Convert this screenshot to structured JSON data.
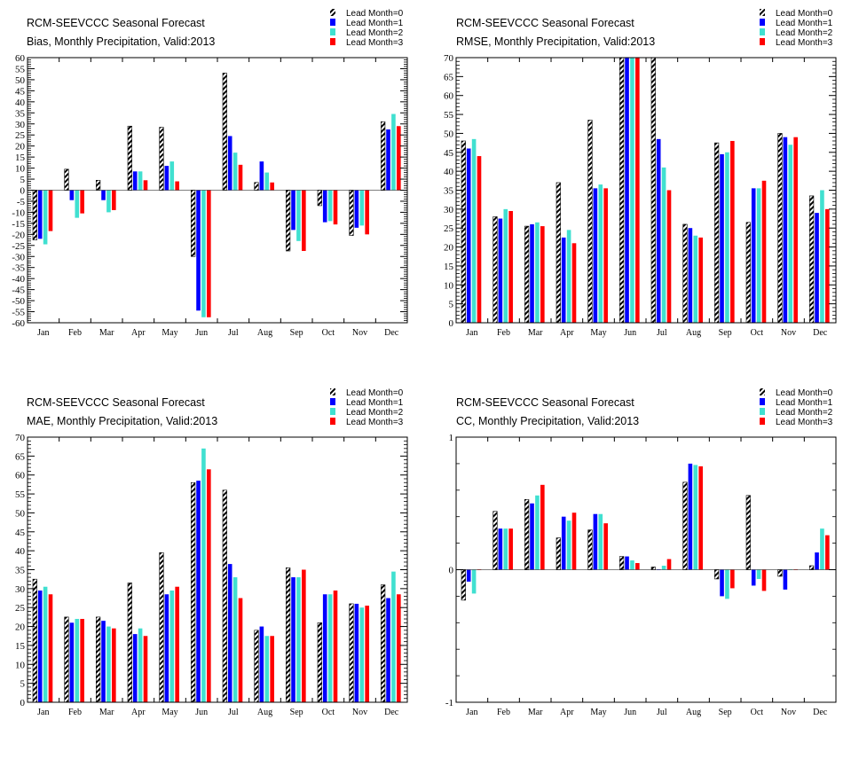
{
  "chart_data": [
    {
      "type": "bar",
      "title": "RCM-SEEVCCC Seasonal Forecast",
      "subtitle": "Bias, Monthly Precipitation, Valid:2013",
      "categories": [
        "Jan",
        "Feb",
        "Mar",
        "Apr",
        "May",
        "Jun",
        "Jul",
        "Aug",
        "Sep",
        "Oct",
        "Nov",
        "Dec"
      ],
      "ylim": [
        -60,
        60
      ],
      "yticks": [
        60,
        55,
        50,
        45,
        40,
        35,
        30,
        25,
        20,
        15,
        10,
        5,
        0,
        -5,
        -10,
        -15,
        -20,
        -25,
        -30,
        -35,
        -40,
        -45,
        -50,
        -55,
        -60
      ],
      "legend": "top-right",
      "series": [
        {
          "name": "Lead Month=0",
          "values": [
            -22.5,
            9.5,
            4.5,
            29,
            28.5,
            -30,
            53,
            3.5,
            -27.5,
            -7,
            -20.5,
            31
          ]
        },
        {
          "name": "Lead Month=1",
          "values": [
            -22,
            -4.5,
            -4.5,
            8.5,
            11,
            -54.5,
            24.5,
            13,
            -18,
            -14.5,
            -17,
            27.5
          ]
        },
        {
          "name": "Lead Month=2",
          "values": [
            -24.5,
            -12.5,
            -10,
            8.5,
            13,
            -57.5,
            17,
            8,
            -23,
            -14,
            -16,
            34.5
          ]
        },
        {
          "name": "Lead Month=3",
          "values": [
            -18.5,
            -10.5,
            -9,
            4.5,
            4,
            -57.5,
            11.5,
            3.5,
            -27.5,
            -15.5,
            -20,
            29
          ]
        }
      ]
    },
    {
      "type": "bar",
      "title": "RCM-SEEVCCC Seasonal Forecast",
      "subtitle": "RMSE, Monthly Precipitation, Valid:2013",
      "categories": [
        "Jan",
        "Feb",
        "Mar",
        "Apr",
        "May",
        "Jun",
        "Jul",
        "Aug",
        "Sep",
        "Oct",
        "Nov",
        "Dec"
      ],
      "ylim": [
        0,
        70
      ],
      "yticks": [
        70,
        65,
        60,
        55,
        50,
        45,
        40,
        35,
        30,
        25,
        20,
        15,
        10,
        5,
        0
      ],
      "legend": "top-right",
      "series": [
        {
          "name": "Lead Month=0",
          "values": [
            48,
            28,
            25.5,
            37,
            53.5,
            70,
            70,
            26,
            47.5,
            26.5,
            50,
            33.5
          ]
        },
        {
          "name": "Lead Month=1",
          "values": [
            46,
            27.5,
            26,
            22.5,
            35.5,
            70,
            48.5,
            25,
            44.5,
            35.5,
            49,
            29
          ]
        },
        {
          "name": "Lead Month=2",
          "values": [
            48.5,
            30,
            26.5,
            24.5,
            36.5,
            70,
            41,
            23,
            45,
            35.5,
            47,
            35
          ]
        },
        {
          "name": "Lead Month=3",
          "values": [
            44,
            29.5,
            25.5,
            21,
            35.5,
            70,
            35,
            22.5,
            48,
            37.5,
            49,
            30
          ]
        }
      ]
    },
    {
      "type": "bar",
      "title": "RCM-SEEVCCC Seasonal Forecast",
      "subtitle": "MAE, Monthly Precipitation, Valid:2013",
      "categories": [
        "Jan",
        "Feb",
        "Mar",
        "Apr",
        "May",
        "Jun",
        "Jul",
        "Aug",
        "Sep",
        "Oct",
        "Nov",
        "Dec"
      ],
      "ylim": [
        0,
        70
      ],
      "yticks": [
        70,
        65,
        60,
        55,
        50,
        45,
        40,
        35,
        30,
        25,
        20,
        15,
        10,
        5,
        0
      ],
      "legend": "top-right",
      "series": [
        {
          "name": "Lead Month=0",
          "values": [
            32.5,
            22.5,
            22.5,
            31.5,
            39.5,
            58,
            56,
            19,
            35.5,
            21,
            26,
            31
          ]
        },
        {
          "name": "Lead Month=1",
          "values": [
            29.5,
            21,
            21.5,
            18,
            28.5,
            58.5,
            36.5,
            20,
            33,
            28.5,
            26,
            27.5
          ]
        },
        {
          "name": "Lead Month=2",
          "values": [
            30.5,
            22,
            20,
            19.5,
            29.5,
            67,
            33,
            17.5,
            33,
            28.5,
            25,
            34.5
          ]
        },
        {
          "name": "Lead Month=3",
          "values": [
            28.5,
            22,
            19.5,
            17.5,
            30.5,
            61.5,
            27.5,
            17.5,
            35,
            29.5,
            25.5,
            28.5
          ]
        }
      ]
    },
    {
      "type": "bar",
      "title": "RCM-SEEVCCC Seasonal Forecast",
      "subtitle": "CC, Monthly Precipitation, Valid:2013",
      "categories": [
        "Jan",
        "Feb",
        "Mar",
        "Apr",
        "May",
        "Jun",
        "Jul",
        "Aug",
        "Sep",
        "Oct",
        "Nov",
        "Dec"
      ],
      "ylim": [
        -1,
        1
      ],
      "yticks": [
        1,
        0,
        -1
      ],
      "legend": "top-right",
      "series": [
        {
          "name": "Lead Month=0",
          "values": [
            -0.23,
            0.44,
            0.53,
            0.24,
            0.3,
            0.1,
            0.02,
            0.66,
            -0.07,
            0.56,
            -0.05,
            0.03
          ]
        },
        {
          "name": "Lead Month=1",
          "values": [
            -0.09,
            0.31,
            0.5,
            0.4,
            0.42,
            0.1,
            0.0,
            0.8,
            -0.2,
            -0.12,
            -0.15,
            0.13
          ]
        },
        {
          "name": "Lead Month=2",
          "values": [
            -0.18,
            0.31,
            0.56,
            0.37,
            0.42,
            0.07,
            0.03,
            0.79,
            -0.22,
            -0.07,
            0.0,
            0.31
          ]
        },
        {
          "name": "Lead Month=3",
          "values": [
            0.0,
            0.31,
            0.64,
            0.43,
            0.35,
            0.05,
            0.08,
            0.78,
            -0.14,
            -0.16,
            0.0,
            0.26
          ]
        }
      ]
    }
  ],
  "colors": {
    "lead0": "hatched black/white",
    "lead1": "#0000ff",
    "lead2": "#40e0d0",
    "lead3": "#ff0000"
  }
}
